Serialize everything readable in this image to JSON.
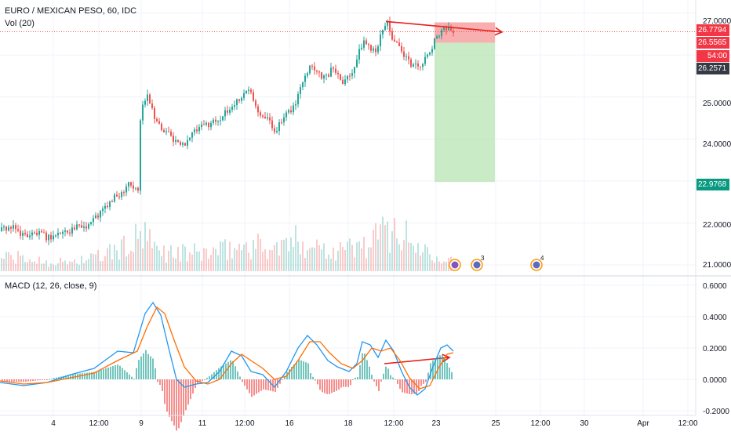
{
  "header": {
    "symbol_title": "EURO / MEXICAN PESO, 60, IDC",
    "volume_label": "Vol (20)",
    "macd_label": "MACD (12, 26, close, 9)"
  },
  "price_axis": {
    "ticks": [
      "27.0000",
      "25.0000",
      "24.0000",
      "22.0000",
      "21.0000"
    ],
    "tags": [
      {
        "label": "26.7794",
        "color": "#f23645"
      },
      {
        "label": "26.5565",
        "color": "#f23645"
      },
      {
        "label": "54:00",
        "color": "#f23645"
      },
      {
        "label": "26.2571",
        "color": "#363a45"
      },
      {
        "label": "22.9768",
        "color": "#089981"
      }
    ]
  },
  "macd_axis": {
    "ticks": [
      "0.6000",
      "0.4000",
      "0.2000",
      "0.0000",
      "-0.2000"
    ]
  },
  "time_axis": {
    "labels": [
      "4",
      "12:00",
      "9",
      "11",
      "12:00",
      "16",
      "18",
      "12:00",
      "23",
      "25",
      "12:00",
      "30",
      "Apr",
      "12:00"
    ]
  },
  "event_badges": [
    {
      "label": ""
    },
    {
      "label": "3"
    },
    {
      "label": "4"
    }
  ],
  "colors": {
    "up": "#26a69a",
    "down": "#ef5350",
    "macd_line": "#2196f3",
    "signal_line": "#ff6d00",
    "annotation": "#e91e1e",
    "stop_zone": "#f7a1a1",
    "target_zone": "#b7e4b1"
  },
  "chart_data": {
    "type": "candlestick",
    "series": [
      {
        "name": "EURO / MEXICAN PESO, 60, IDC",
        "type": "candlestick"
      },
      {
        "name": "Vol (20)",
        "type": "bar"
      },
      {
        "name": "MACD (12, 26, close, 9)",
        "type": "line"
      }
    ],
    "price_path": [
      [
        0,
        21.8
      ],
      [
        8,
        21.9
      ],
      [
        18,
        21.85
      ],
      [
        30,
        21.7
      ],
      [
        45,
        21.75
      ],
      [
        60,
        21.65
      ],
      [
        75,
        21.75
      ],
      [
        90,
        21.85
      ],
      [
        110,
        21.95
      ],
      [
        125,
        22.2
      ],
      [
        140,
        22.5
      ],
      [
        155,
        22.75
      ],
      [
        163,
        23.0
      ],
      [
        168,
        22.85
      ],
      [
        176,
        22.75
      ],
      [
        177,
        24.35
      ],
      [
        182,
        24.9
      ],
      [
        187,
        25.1
      ],
      [
        195,
        24.6
      ],
      [
        205,
        24.2
      ],
      [
        215,
        24.1
      ],
      [
        225,
        23.9
      ],
      [
        232,
        23.85
      ],
      [
        240,
        24.05
      ],
      [
        250,
        24.2
      ],
      [
        262,
        24.35
      ],
      [
        275,
        24.45
      ],
      [
        290,
        24.65
      ],
      [
        300,
        24.9
      ],
      [
        310,
        25.05
      ],
      [
        318,
        25.25
      ],
      [
        326,
        24.75
      ],
      [
        333,
        24.6
      ],
      [
        340,
        24.5
      ],
      [
        348,
        24.2
      ],
      [
        356,
        24.35
      ],
      [
        366,
        24.6
      ],
      [
        376,
        24.85
      ],
      [
        386,
        25.5
      ],
      [
        396,
        25.8
      ],
      [
        404,
        25.6
      ],
      [
        414,
        25.45
      ],
      [
        424,
        25.7
      ],
      [
        436,
        25.4
      ],
      [
        446,
        25.55
      ],
      [
        456,
        26.0
      ],
      [
        462,
        26.35
      ],
      [
        470,
        26.2
      ],
      [
        478,
        26.15
      ],
      [
        486,
        26.5
      ],
      [
        492,
        26.85
      ],
      [
        498,
        26.45
      ],
      [
        506,
        26.2
      ],
      [
        514,
        25.95
      ],
      [
        522,
        25.8
      ],
      [
        530,
        25.75
      ],
      [
        540,
        25.85
      ],
      [
        548,
        26.1
      ],
      [
        556,
        26.45
      ],
      [
        563,
        26.65
      ],
      [
        572,
        26.62
      ],
      [
        578,
        26.6
      ]
    ],
    "short_position": {
      "entry": 26.5565,
      "stop": 26.7794,
      "target": 22.9768
    },
    "last_price": 26.5565,
    "volume_profile": [
      [
        0,
        0.35
      ],
      [
        40,
        0.25
      ],
      [
        80,
        0.2
      ],
      [
        120,
        0.3
      ],
      [
        160,
        0.55
      ],
      [
        180,
        0.8
      ],
      [
        200,
        0.45
      ],
      [
        240,
        0.4
      ],
      [
        280,
        0.45
      ],
      [
        320,
        0.6
      ],
      [
        350,
        0.5
      ],
      [
        380,
        0.7
      ],
      [
        420,
        0.5
      ],
      [
        460,
        0.55
      ],
      [
        500,
        1.0
      ],
      [
        530,
        0.55
      ],
      [
        560,
        0.4
      ],
      [
        578,
        0.2
      ]
    ],
    "macd_path": [
      [
        0,
        -0.02
      ],
      [
        30,
        -0.04
      ],
      [
        60,
        -0.02
      ],
      [
        90,
        0.03
      ],
      [
        120,
        0.07
      ],
      [
        150,
        0.18
      ],
      [
        170,
        0.17
      ],
      [
        185,
        0.42
      ],
      [
        195,
        0.49
      ],
      [
        205,
        0.41
      ],
      [
        215,
        0.2
      ],
      [
        225,
        0.0
      ],
      [
        235,
        -0.05
      ],
      [
        250,
        -0.03
      ],
      [
        265,
        -0.02
      ],
      [
        280,
        0.05
      ],
      [
        295,
        0.18
      ],
      [
        308,
        0.15
      ],
      [
        320,
        0.05
      ],
      [
        335,
        0.03
      ],
      [
        350,
        -0.05
      ],
      [
        365,
        0.05
      ],
      [
        380,
        0.2
      ],
      [
        392,
        0.28
      ],
      [
        404,
        0.22
      ],
      [
        418,
        0.12
      ],
      [
        430,
        0.08
      ],
      [
        445,
        0.05
      ],
      [
        455,
        0.1
      ],
      [
        462,
        0.24
      ],
      [
        472,
        0.22
      ],
      [
        482,
        0.14
      ],
      [
        492,
        0.25
      ],
      [
        502,
        0.18
      ],
      [
        512,
        0.05
      ],
      [
        522,
        -0.05
      ],
      [
        532,
        -0.1
      ],
      [
        542,
        -0.06
      ],
      [
        552,
        0.08
      ],
      [
        562,
        0.2
      ],
      [
        570,
        0.22
      ],
      [
        578,
        0.18
      ]
    ],
    "signal_path": [
      [
        0,
        -0.01
      ],
      [
        30,
        -0.03
      ],
      [
        60,
        -0.02
      ],
      [
        90,
        0.01
      ],
      [
        120,
        0.04
      ],
      [
        150,
        0.12
      ],
      [
        175,
        0.18
      ],
      [
        188,
        0.34
      ],
      [
        200,
        0.46
      ],
      [
        210,
        0.42
      ],
      [
        222,
        0.25
      ],
      [
        235,
        0.08
      ],
      [
        250,
        -0.01
      ],
      [
        265,
        -0.03
      ],
      [
        280,
        0.0
      ],
      [
        295,
        0.1
      ],
      [
        308,
        0.16
      ],
      [
        320,
        0.12
      ],
      [
        335,
        0.07
      ],
      [
        350,
        0.0
      ],
      [
        365,
        0.02
      ],
      [
        380,
        0.12
      ],
      [
        395,
        0.24
      ],
      [
        408,
        0.24
      ],
      [
        420,
        0.17
      ],
      [
        435,
        0.1
      ],
      [
        450,
        0.07
      ],
      [
        462,
        0.12
      ],
      [
        474,
        0.2
      ],
      [
        486,
        0.18
      ],
      [
        498,
        0.2
      ],
      [
        510,
        0.12
      ],
      [
        522,
        0.01
      ],
      [
        535,
        -0.06
      ],
      [
        548,
        -0.04
      ],
      [
        560,
        0.08
      ],
      [
        570,
        0.16
      ],
      [
        578,
        0.17
      ]
    ],
    "annotations": [
      {
        "pane": "price",
        "from": [
          492,
          26.8
        ],
        "to": [
          640,
          26.55
        ]
      },
      {
        "pane": "macd",
        "from": [
          490,
          0.1
        ],
        "to": [
          573,
          0.14
        ]
      }
    ],
    "price_range": [
      20.85,
      27.2
    ],
    "macd_range": [
      -0.22,
      0.62
    ],
    "grid": true,
    "legend": "top-left"
  }
}
